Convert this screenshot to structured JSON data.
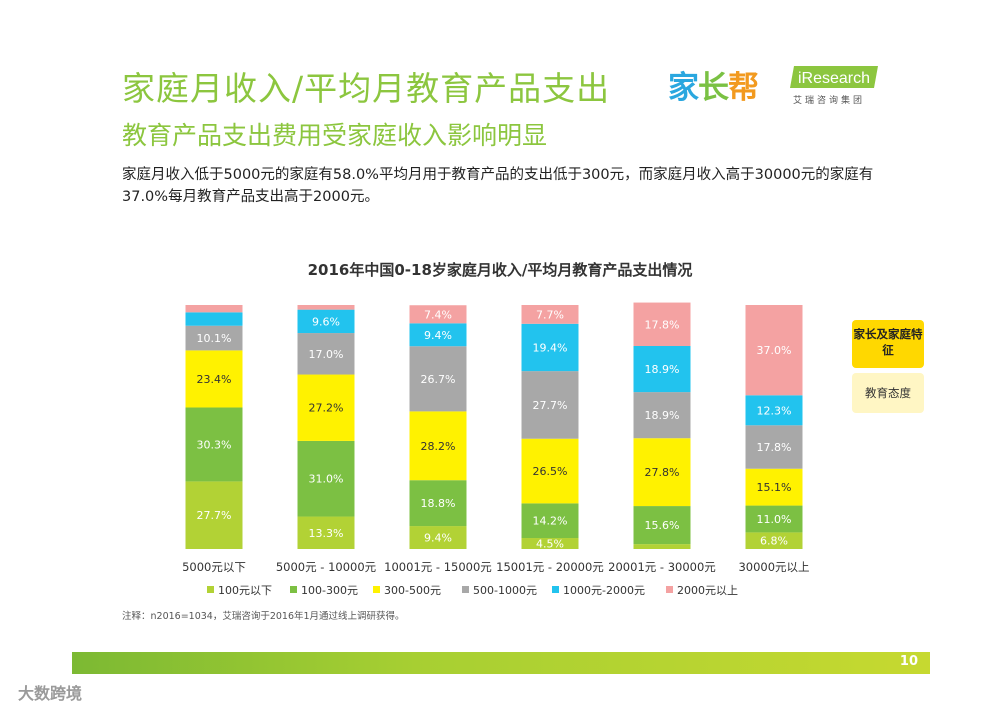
{
  "header": {
    "title": "家庭月收入/平均月教育产品支出",
    "subtitle": "教育产品支出费用受家庭收入影响明显",
    "description": "家庭月收入低于5000元的家庭有58.0%平均月用于教育产品的支出低于300元，而家庭月收入高于30000元的家庭有37.0%每月教育产品支出高于2000元。"
  },
  "logos": {
    "jiazhangbang_1": "家",
    "jiazhangbang_2": "长",
    "jiazhangbang_3": "帮",
    "iresearch": "iResearch",
    "iresearch_sub": "艾瑞咨询集团"
  },
  "side_labels": {
    "family_traits": "家长及家庭特征",
    "education_attitude": "教育态度"
  },
  "note": "注释：n2016=1034，艾瑞咨询于2016年1月通过线上调研获得。",
  "page_number": "10",
  "watermark": "大数跨境",
  "colors": {
    "brand_green": "#8cc63f",
    "footer_green": "#a7cf32"
  },
  "chart_data": {
    "type": "bar",
    "stacked": true,
    "title": "2016年中国0-18岁家庭月收入/平均月教育产品支出情况",
    "categories": [
      "5000元以下",
      "5000元 - 10000元",
      "10001元 - 15000元",
      "15001元 - 20000元",
      "20001元 - 30000元",
      "30000元以上"
    ],
    "series": [
      {
        "name": "100元以下",
        "color": "#b2d235",
        "values": [
          27.7,
          13.3,
          9.4,
          4.5,
          2.0,
          6.8
        ],
        "labels": [
          "27.7%",
          "13.3%",
          "9.4%",
          "4.5%",
          "",
          "6.8%"
        ]
      },
      {
        "name": "100-300元",
        "color": "#7cc043",
        "values": [
          30.3,
          31.0,
          18.8,
          14.2,
          15.6,
          11.0
        ],
        "labels": [
          "30.3%",
          "31.0%",
          "18.8%",
          "14.2%",
          "15.6%",
          "11.0%"
        ]
      },
      {
        "name": "300-500元",
        "color": "#fff200",
        "values": [
          23.4,
          27.2,
          28.2,
          26.5,
          27.8,
          15.1
        ],
        "labels": [
          "23.4%",
          "27.2%",
          "28.2%",
          "26.5%",
          "27.8%",
          "15.1%"
        ]
      },
      {
        "name": "500-1000元",
        "color": "#a8a8a8",
        "values": [
          10.1,
          17.0,
          26.7,
          27.7,
          18.9,
          17.8
        ],
        "labels": [
          "10.1%",
          "17.0%",
          "26.7%",
          "27.7%",
          "18.9%",
          "17.8%"
        ]
      },
      {
        "name": "1000元-2000元",
        "color": "#22c3ee",
        "values": [
          5.5,
          9.6,
          9.4,
          19.4,
          18.9,
          12.3
        ],
        "labels": [
          "",
          "9.6%",
          "9.4%",
          "19.4%",
          "18.9%",
          "12.3%"
        ]
      },
      {
        "name": "2000元以上",
        "color": "#f4a2a2",
        "values": [
          3.0,
          1.9,
          7.4,
          7.7,
          17.8,
          37.0
        ],
        "labels": [
          "",
          "",
          "7.4%",
          "7.7%",
          "17.8%",
          "37.0%"
        ]
      }
    ],
    "ylim": [
      0,
      100
    ],
    "legend_position": "bottom"
  }
}
